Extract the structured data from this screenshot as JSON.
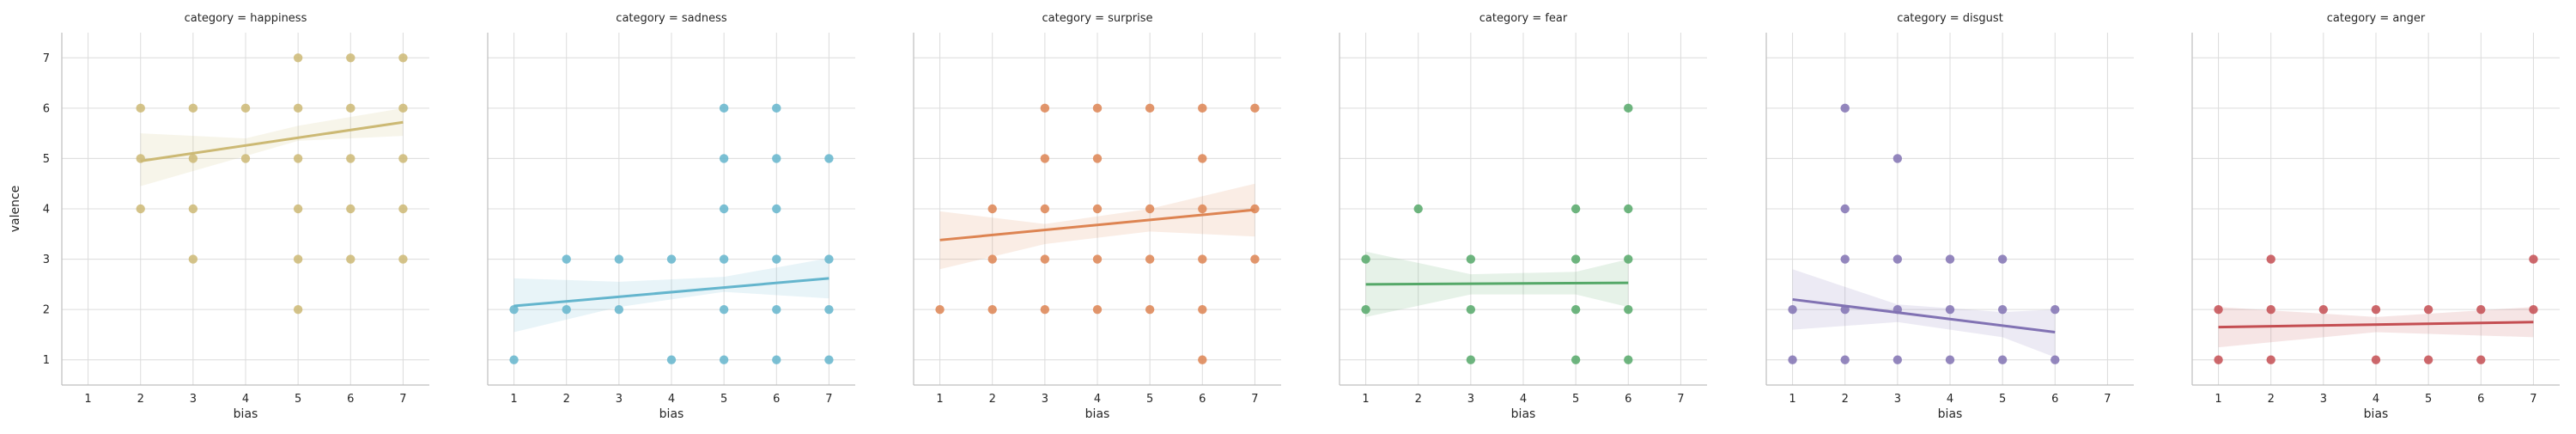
{
  "chart_data": {
    "type": "scatter",
    "style": "seaborn whitegrid facet grid with linear regression fits and confidence bands",
    "facet_title_prefix": "category = ",
    "xlabel": "bias",
    "ylabel": "valence",
    "xlim": [
      0.5,
      7.5
    ],
    "ylim": [
      0.5,
      7.5
    ],
    "xticks": [
      1,
      2,
      3,
      4,
      5,
      6,
      7
    ],
    "yticks": [
      1,
      2,
      3,
      4,
      5,
      6,
      7
    ],
    "grid": true,
    "panels": [
      {
        "category": "happiness",
        "color": "#ccb974",
        "points": [
          [
            2,
            4
          ],
          [
            2,
            5
          ],
          [
            2,
            6
          ],
          [
            3,
            3
          ],
          [
            3,
            4
          ],
          [
            3,
            5
          ],
          [
            3,
            6
          ],
          [
            4,
            5
          ],
          [
            4,
            6
          ],
          [
            5,
            2
          ],
          [
            5,
            3
          ],
          [
            5,
            4
          ],
          [
            5,
            5
          ],
          [
            5,
            6
          ],
          [
            5,
            7
          ],
          [
            6,
            3
          ],
          [
            6,
            4
          ],
          [
            6,
            5
          ],
          [
            6,
            6
          ],
          [
            6,
            7
          ],
          [
            7,
            3
          ],
          [
            7,
            4
          ],
          [
            7,
            5
          ],
          [
            7,
            6
          ],
          [
            7,
            7
          ]
        ],
        "fit": [
          [
            2,
            4.95
          ],
          [
            7,
            5.72
          ]
        ],
        "ci_lower": [
          [
            2,
            4.45
          ],
          [
            4,
            5.05
          ],
          [
            5,
            5.35
          ],
          [
            7,
            5.45
          ]
        ],
        "ci_upper": [
          [
            2,
            5.5
          ],
          [
            4,
            5.4
          ],
          [
            5,
            5.65
          ],
          [
            7,
            6.0
          ]
        ]
      },
      {
        "category": "sadness",
        "color": "#64b5cd",
        "points": [
          [
            1,
            1
          ],
          [
            1,
            2
          ],
          [
            2,
            2
          ],
          [
            2,
            3
          ],
          [
            3,
            2
          ],
          [
            3,
            3
          ],
          [
            4,
            1
          ],
          [
            4,
            3
          ],
          [
            5,
            1
          ],
          [
            5,
            2
          ],
          [
            5,
            3
          ],
          [
            5,
            4
          ],
          [
            5,
            5
          ],
          [
            5,
            6
          ],
          [
            6,
            1
          ],
          [
            6,
            2
          ],
          [
            6,
            3
          ],
          [
            6,
            4
          ],
          [
            6,
            5
          ],
          [
            6,
            6
          ],
          [
            7,
            1
          ],
          [
            7,
            2
          ],
          [
            7,
            3
          ],
          [
            7,
            5
          ]
        ],
        "fit": [
          [
            1,
            2.07
          ],
          [
            7,
            2.62
          ]
        ],
        "ci_lower": [
          [
            1,
            1.55
          ],
          [
            3,
            2.05
          ],
          [
            5,
            2.35
          ],
          [
            7,
            2.22
          ]
        ],
        "ci_upper": [
          [
            1,
            2.62
          ],
          [
            3,
            2.55
          ],
          [
            5,
            2.65
          ],
          [
            7,
            3.02
          ]
        ]
      },
      {
        "category": "surprise",
        "color": "#dd8452",
        "points": [
          [
            1,
            2
          ],
          [
            2,
            2
          ],
          [
            2,
            3
          ],
          [
            2,
            4
          ],
          [
            3,
            2
          ],
          [
            3,
            3
          ],
          [
            3,
            4
          ],
          [
            3,
            5
          ],
          [
            3,
            6
          ],
          [
            4,
            2
          ],
          [
            4,
            3
          ],
          [
            4,
            4
          ],
          [
            4,
            5
          ],
          [
            4,
            6
          ],
          [
            5,
            2
          ],
          [
            5,
            3
          ],
          [
            5,
            4
          ],
          [
            5,
            6
          ],
          [
            6,
            1
          ],
          [
            6,
            2
          ],
          [
            6,
            3
          ],
          [
            6,
            4
          ],
          [
            6,
            5
          ],
          [
            6,
            6
          ],
          [
            7,
            3
          ],
          [
            7,
            4
          ],
          [
            7,
            6
          ]
        ],
        "fit": [
          [
            1,
            3.38
          ],
          [
            7,
            3.98
          ]
        ],
        "ci_lower": [
          [
            1,
            2.8
          ],
          [
            3,
            3.3
          ],
          [
            5,
            3.55
          ],
          [
            7,
            3.45
          ]
        ],
        "ci_upper": [
          [
            1,
            3.95
          ],
          [
            3,
            3.7
          ],
          [
            5,
            4.0
          ],
          [
            7,
            4.5
          ]
        ]
      },
      {
        "category": "fear",
        "color": "#55a868",
        "points": [
          [
            1,
            2
          ],
          [
            1,
            3
          ],
          [
            2,
            4
          ],
          [
            3,
            1
          ],
          [
            3,
            2
          ],
          [
            3,
            3
          ],
          [
            5,
            1
          ],
          [
            5,
            2
          ],
          [
            5,
            3
          ],
          [
            5,
            4
          ],
          [
            6,
            1
          ],
          [
            6,
            2
          ],
          [
            6,
            3
          ],
          [
            6,
            4
          ],
          [
            6,
            6
          ]
        ],
        "fit": [
          [
            1,
            2.5
          ],
          [
            6,
            2.53
          ]
        ],
        "ci_lower": [
          [
            1,
            1.85
          ],
          [
            3,
            2.3
          ],
          [
            5,
            2.3
          ],
          [
            6,
            2.05
          ]
        ],
        "ci_upper": [
          [
            1,
            3.15
          ],
          [
            3,
            2.7
          ],
          [
            5,
            2.75
          ],
          [
            6,
            3.0
          ]
        ]
      },
      {
        "category": "disgust",
        "color": "#8172b3",
        "points": [
          [
            1,
            1
          ],
          [
            1,
            2
          ],
          [
            2,
            1
          ],
          [
            2,
            2
          ],
          [
            2,
            3
          ],
          [
            2,
            4
          ],
          [
            2,
            6
          ],
          [
            3,
            1
          ],
          [
            3,
            2
          ],
          [
            3,
            3
          ],
          [
            3,
            5
          ],
          [
            4,
            1
          ],
          [
            4,
            2
          ],
          [
            4,
            3
          ],
          [
            5,
            1
          ],
          [
            5,
            2
          ],
          [
            5,
            3
          ],
          [
            6,
            1
          ],
          [
            6,
            2
          ]
        ],
        "fit": [
          [
            1,
            2.2
          ],
          [
            6,
            1.55
          ]
        ],
        "ci_lower": [
          [
            1,
            1.6
          ],
          [
            3,
            1.75
          ],
          [
            5,
            1.45
          ],
          [
            6,
            1.05
          ]
        ],
        "ci_upper": [
          [
            1,
            2.8
          ],
          [
            3,
            2.1
          ],
          [
            5,
            1.95
          ],
          [
            6,
            2.0
          ]
        ]
      },
      {
        "category": "anger",
        "color": "#c44e52",
        "points": [
          [
            1,
            1
          ],
          [
            1,
            2
          ],
          [
            2,
            1
          ],
          [
            2,
            2
          ],
          [
            2,
            3
          ],
          [
            3,
            2
          ],
          [
            4,
            1
          ],
          [
            4,
            2
          ],
          [
            5,
            1
          ],
          [
            5,
            2
          ],
          [
            6,
            1
          ],
          [
            6,
            2
          ],
          [
            7,
            2
          ],
          [
            7,
            3
          ]
        ],
        "fit": [
          [
            1,
            1.65
          ],
          [
            7,
            1.75
          ]
        ],
        "ci_lower": [
          [
            1,
            1.25
          ],
          [
            4,
            1.55
          ],
          [
            7,
            1.45
          ]
        ],
        "ci_upper": [
          [
            1,
            2.05
          ],
          [
            4,
            1.85
          ],
          [
            7,
            2.05
          ]
        ]
      }
    ]
  }
}
